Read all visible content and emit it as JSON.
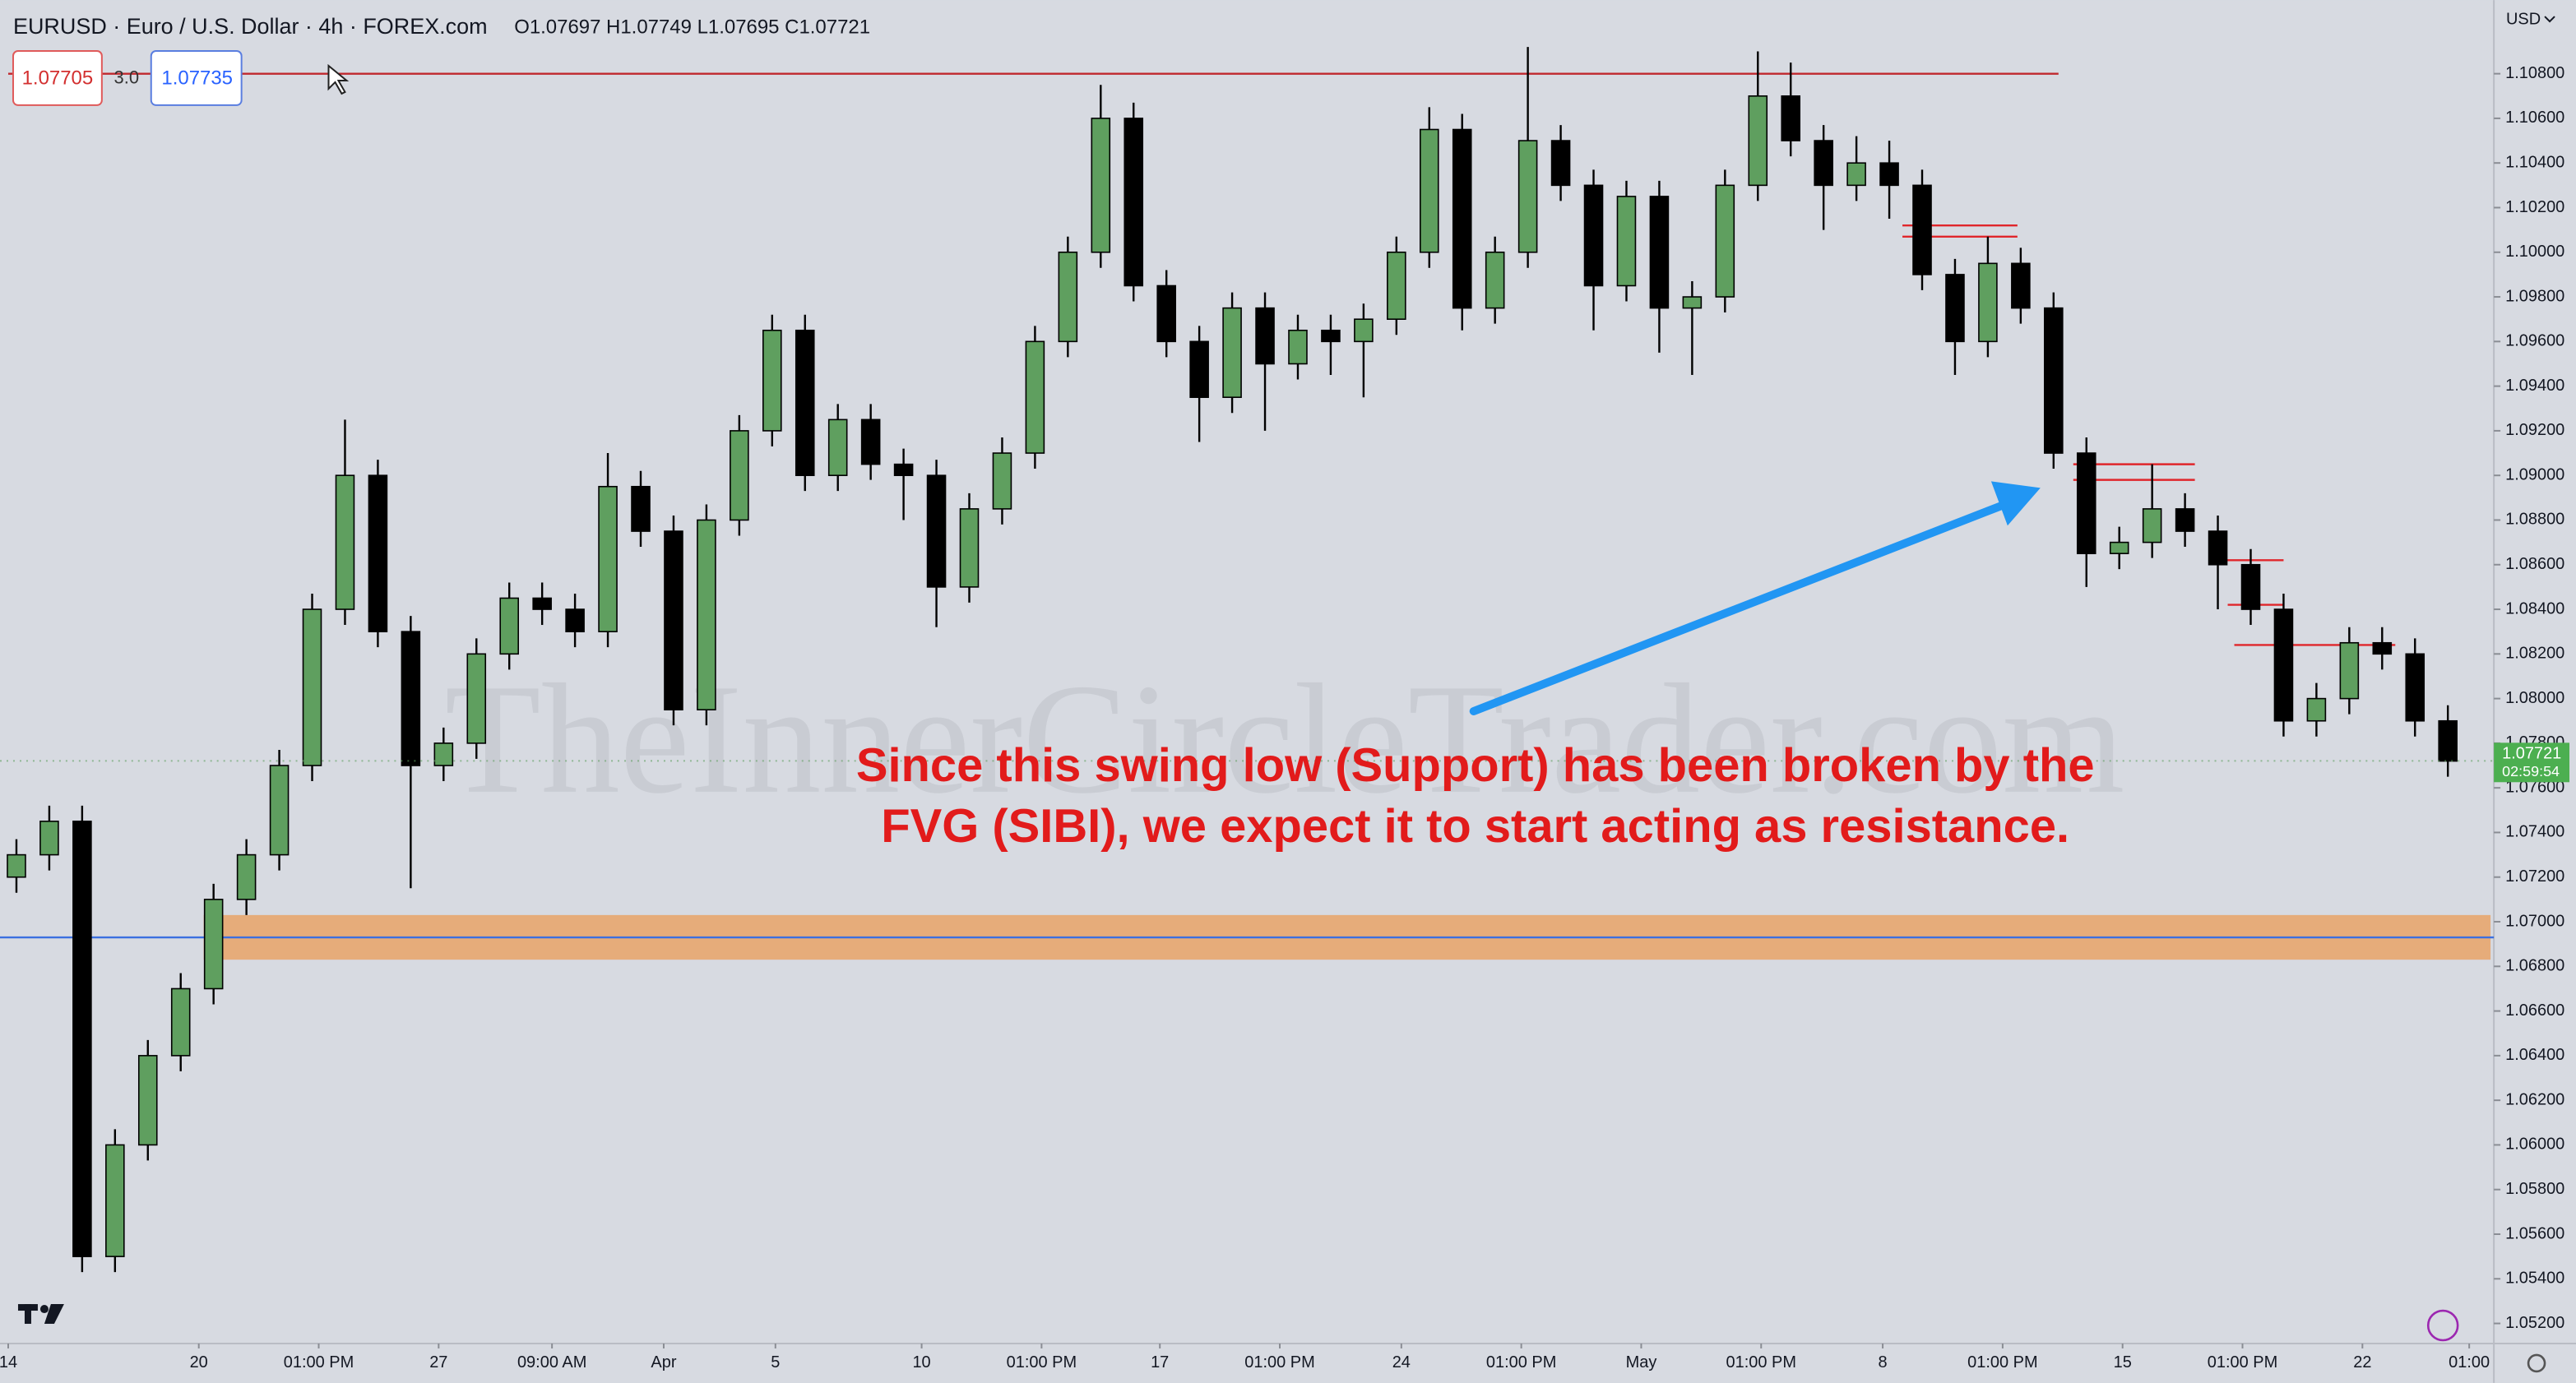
{
  "chart_data": {
    "type": "candlestick",
    "title": "EURUSD · Euro / U.S. Dollar · 4h · FOREX.com",
    "ohlc_readout": "O1.07697 H1.07749 L1.07695 C1.07721",
    "sell_price": "1.07705",
    "spread": "3.0",
    "buy_price": "1.07735",
    "currency": "USD",
    "last_price": {
      "value": 1.07721,
      "label": "1.07721"
    },
    "countdown": "02:59:54",
    "watermark": "TheInnerCircleTrader.com",
    "annotation": [
      "Since this swing low (Support) has been broken by the",
      "FVG (SIBI), we expect it to start acting as resistance."
    ],
    "up_color": "#5f9f5f",
    "down_color": "#000000",
    "candles": {
      "open": [
        1.072,
        1.073,
        1.0745,
        1.055,
        1.06,
        1.064,
        1.067,
        1.071,
        1.073,
        1.077,
        1.084,
        1.09,
        1.083,
        1.077,
        1.078,
        1.082,
        1.0845,
        1.084,
        1.083,
        1.0895,
        1.0875,
        1.0795,
        1.088,
        1.092,
        1.0965,
        1.09,
        1.0925,
        1.0905,
        1.09,
        1.085,
        1.0885,
        1.091,
        1.096,
        1.1,
        1.106,
        1.0985,
        1.096,
        1.0935,
        1.0975,
        1.095,
        1.0965,
        1.096,
        1.097,
        1.1,
        1.1055,
        1.0975,
        1.1,
        1.105,
        1.103,
        1.0985,
        1.1025,
        1.0975,
        1.098,
        1.103,
        1.107,
        1.105,
        1.103,
        1.104,
        1.103,
        1.099,
        1.096,
        1.0995,
        1.0975,
        1.091,
        1.0865,
        1.087,
        1.0885,
        1.0875,
        1.086,
        1.084,
        1.079,
        1.08,
        1.0825,
        1.082,
        1.079
      ],
      "high": [
        1.0737,
        1.0752,
        1.0752,
        1.0607,
        1.0647,
        1.0677,
        1.0717,
        1.0737,
        1.0777,
        1.0847,
        1.0925,
        1.0907,
        1.0837,
        1.0787,
        1.0827,
        1.0852,
        1.0852,
        1.0847,
        1.091,
        1.0902,
        1.0882,
        1.0887,
        1.0927,
        1.0972,
        1.0972,
        1.0932,
        1.0932,
        1.0912,
        1.0907,
        1.0892,
        1.0917,
        1.0967,
        1.1007,
        1.1075,
        1.1067,
        1.0992,
        1.0967,
        1.0982,
        1.0982,
        1.0972,
        1.0972,
        1.0977,
        1.1007,
        1.1065,
        1.1062,
        1.1007,
        1.1092,
        1.1057,
        1.1037,
        1.1032,
        1.1032,
        1.0987,
        1.1037,
        1.109,
        1.1085,
        1.1057,
        1.1052,
        1.105,
        1.1037,
        1.0997,
        1.1007,
        1.1002,
        1.0982,
        1.0917,
        1.0877,
        1.0905,
        1.0892,
        1.0882,
        1.0867,
        1.0847,
        1.0807,
        1.0832,
        1.0832,
        1.0827,
        1.0797
      ],
      "low": [
        1.0713,
        1.0723,
        1.0543,
        1.0543,
        1.0593,
        1.0633,
        1.0663,
        1.0703,
        1.0723,
        1.0763,
        1.0833,
        1.0823,
        1.0715,
        1.0763,
        1.0773,
        1.0813,
        1.0833,
        1.0823,
        1.0823,
        1.0868,
        1.0788,
        1.0788,
        1.0873,
        1.0913,
        1.0893,
        1.0893,
        1.0898,
        1.088,
        1.0832,
        1.0843,
        1.0878,
        1.0903,
        1.0953,
        1.0993,
        1.0978,
        1.0953,
        1.0915,
        1.0928,
        1.092,
        1.0943,
        1.0945,
        1.0935,
        1.0963,
        1.0993,
        1.0965,
        1.0968,
        1.0993,
        1.1023,
        1.0965,
        1.0978,
        1.0955,
        1.0945,
        1.0973,
        1.1023,
        1.1043,
        1.101,
        1.1023,
        1.1015,
        1.0983,
        1.0945,
        1.0953,
        1.0968,
        1.0903,
        1.085,
        1.0858,
        1.0863,
        1.0868,
        1.084,
        1.0833,
        1.0783,
        1.0783,
        1.0793,
        1.0813,
        1.0783,
        1.0765
      ],
      "close": [
        1.073,
        1.0745,
        1.055,
        1.06,
        1.064,
        1.067,
        1.071,
        1.073,
        1.077,
        1.084,
        1.09,
        1.083,
        1.077,
        1.078,
        1.082,
        1.0845,
        1.084,
        1.083,
        1.0895,
        1.0875,
        1.0795,
        1.088,
        1.092,
        1.0965,
        1.09,
        1.0925,
        1.0905,
        1.09,
        1.085,
        1.0885,
        1.091,
        1.096,
        1.1,
        1.106,
        1.0985,
        1.096,
        1.0935,
        1.0975,
        1.095,
        1.0965,
        1.096,
        1.097,
        1.1,
        1.1055,
        1.0975,
        1.1,
        1.105,
        1.103,
        1.0985,
        1.1025,
        1.0975,
        1.098,
        1.103,
        1.107,
        1.105,
        1.103,
        1.104,
        1.103,
        1.099,
        1.096,
        1.0995,
        1.0975,
        1.091,
        1.0865,
        1.087,
        1.0885,
        1.0875,
        1.086,
        1.084,
        1.079,
        1.08,
        1.0825,
        1.082,
        1.079,
        1.0772
      ]
    },
    "levels": [
      {
        "value": 1.108,
        "from": 0.25,
        "to": 62.65,
        "color": "#c0282d"
      },
      {
        "value": 1.1012,
        "from": 57.9,
        "to": 61.4,
        "color": "#e0262b"
      },
      {
        "value": 1.1007,
        "from": 57.9,
        "to": 61.4,
        "color": "#e0262b"
      },
      {
        "value": 1.0905,
        "from": 63.1,
        "to": 66.8,
        "color": "#e0262b"
      },
      {
        "value": 1.0898,
        "from": 63.1,
        "to": 66.8,
        "color": "#e0262b"
      },
      {
        "value": 1.0862,
        "from": 67.5,
        "to": 69.5,
        "color": "#e0262b"
      },
      {
        "value": 1.0842,
        "from": 67.8,
        "to": 69.5,
        "color": "#e0262b"
      },
      {
        "value": 1.0824,
        "from": 68.0,
        "to": 72.9,
        "color": "#e0262b"
      },
      {
        "value": 1.0693,
        "from": 0,
        "to": 75.9,
        "color": "#3b6fe0"
      }
    ],
    "zone": {
      "low": 1.0683,
      "high": 1.0703,
      "from": 6.2,
      "to": 75.8,
      "color": "#e8a66f"
    },
    "xlim": [
      0,
      75.9
    ],
    "ylim": [
      1.0511,
      1.1113
    ],
    "xticks": [
      {
        "value": 0.25,
        "label": "14"
      },
      {
        "value": 6.05,
        "label": "20"
      },
      {
        "value": 9.7,
        "label": "01:00 PM"
      },
      {
        "value": 13.35,
        "label": "27"
      },
      {
        "value": 16.8,
        "label": "09:00 AM"
      },
      {
        "value": 20.2,
        "label": "Apr"
      },
      {
        "value": 23.6,
        "label": "5"
      },
      {
        "value": 28.05,
        "label": "10"
      },
      {
        "value": 31.7,
        "label": "01:00 PM"
      },
      {
        "value": 35.3,
        "label": "17"
      },
      {
        "value": 38.95,
        "label": "01:00 PM"
      },
      {
        "value": 42.65,
        "label": "24"
      },
      {
        "value": 46.3,
        "label": "01:00 PM"
      },
      {
        "value": 49.95,
        "label": "May"
      },
      {
        "value": 53.6,
        "label": "01:00 PM"
      },
      {
        "value": 57.3,
        "label": "8"
      },
      {
        "value": 60.95,
        "label": "01:00 PM"
      },
      {
        "value": 64.6,
        "label": "15"
      },
      {
        "value": 68.25,
        "label": "01:00 PM"
      },
      {
        "value": 71.9,
        "label": "22"
      },
      {
        "value": 75.15,
        "label": "01:00"
      }
    ],
    "yticks": [
      {
        "value": 1.052,
        "label": "1.05200"
      },
      {
        "value": 1.054,
        "label": "1.05400"
      },
      {
        "value": 1.056,
        "label": "1.05600"
      },
      {
        "value": 1.058,
        "label": "1.05800"
      },
      {
        "value": 1.06,
        "label": "1.06000"
      },
      {
        "value": 1.062,
        "label": "1.06200"
      },
      {
        "value": 1.064,
        "label": "1.06400"
      },
      {
        "value": 1.066,
        "label": "1.06600"
      },
      {
        "value": 1.068,
        "label": "1.06800"
      },
      {
        "value": 1.07,
        "label": "1.07000"
      },
      {
        "value": 1.072,
        "label": "1.07200"
      },
      {
        "value": 1.074,
        "label": "1.07400"
      },
      {
        "value": 1.076,
        "label": "1.07600"
      },
      {
        "value": 1.078,
        "label": "1.07800"
      },
      {
        "value": 1.08,
        "label": "1.08000"
      },
      {
        "value": 1.082,
        "label": "1.08200"
      },
      {
        "value": 1.084,
        "label": "1.08400"
      },
      {
        "value": 1.086,
        "label": "1.08600"
      },
      {
        "value": 1.088,
        "label": "1.08800"
      },
      {
        "value": 1.09,
        "label": "1.09000"
      },
      {
        "value": 1.092,
        "label": "1.09200"
      },
      {
        "value": 1.094,
        "label": "1.09400"
      },
      {
        "value": 1.096,
        "label": "1.09600"
      },
      {
        "value": 1.098,
        "label": "1.09800"
      },
      {
        "value": 1.1,
        "label": "1.10000"
      },
      {
        "value": 1.102,
        "label": "1.10200"
      },
      {
        "value": 1.104,
        "label": "1.10400"
      },
      {
        "value": 1.106,
        "label": "1.10600"
      },
      {
        "value": 1.108,
        "label": "1.10800"
      }
    ],
    "grid": false
  }
}
